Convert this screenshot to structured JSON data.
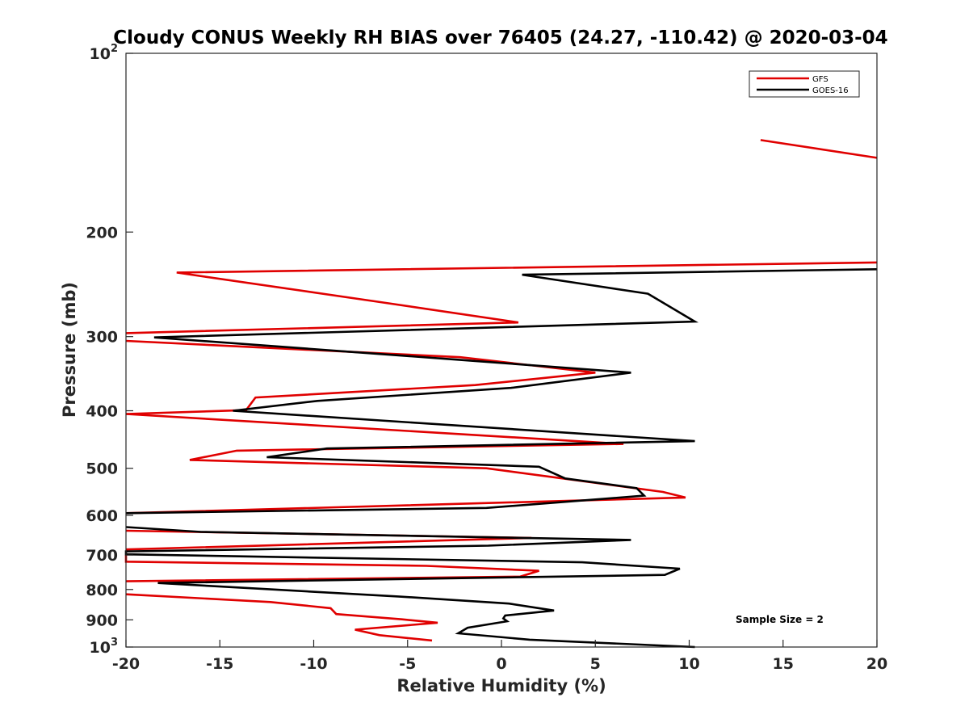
{
  "chart_data": {
    "type": "line",
    "title": "Cloudy CONUS Weekly RH BIAS over 76405 (24.27, -110.42) @ 2020-03-04",
    "xlabel": "Relative Humidity (%)",
    "ylabel": "Pressure (mb)",
    "xlim": [
      -20,
      20
    ],
    "ylim": [
      100,
      1000
    ],
    "y_scale": "log",
    "y_reversed": true,
    "grid": false,
    "legend_position": "top-right",
    "x_ticks": [
      {
        "value": -20,
        "label": "-20"
      },
      {
        "value": -15,
        "label": "-15"
      },
      {
        "value": -10,
        "label": "-10"
      },
      {
        "value": -5,
        "label": "-5"
      },
      {
        "value": 0,
        "label": "0"
      },
      {
        "value": 5,
        "label": "5"
      },
      {
        "value": 10,
        "label": "10"
      },
      {
        "value": 15,
        "label": "15"
      },
      {
        "value": 20,
        "label": "20"
      }
    ],
    "y_ticks": [
      {
        "value": 100,
        "base": "10",
        "exp": "2"
      },
      {
        "value": 200,
        "label": "200"
      },
      {
        "value": 300,
        "label": "300"
      },
      {
        "value": 400,
        "label": "400"
      },
      {
        "value": 500,
        "label": "500"
      },
      {
        "value": 600,
        "label": "600"
      },
      {
        "value": 700,
        "label": "700"
      },
      {
        "value": 800,
        "label": "800"
      },
      {
        "value": 900,
        "label": "900"
      },
      {
        "value": 1000,
        "base": "10",
        "exp": "3"
      }
    ],
    "series": [
      {
        "name": "GFS",
        "color": "#e00000",
        "segments": [
          [
            [
              13.8,
              140
            ],
            [
              20,
              150
            ]
          ],
          [
            [
              20,
              225
            ],
            [
              -17.3,
              234
            ],
            [
              -6.6,
              262
            ],
            [
              0.9,
              284
            ],
            [
              -20,
              296
            ]
          ],
          [
            [
              -20,
              305
            ],
            [
              -2.2,
              325
            ],
            [
              5.0,
              345
            ],
            [
              -1.4,
              362
            ],
            [
              -13.1,
              380
            ],
            [
              -13.6,
              399
            ],
            [
              -20,
              405
            ],
            [
              -20,
              405
            ]
          ],
          [
            [
              -20,
              405
            ],
            [
              6.5,
              455
            ],
            [
              -14.1,
              467
            ],
            [
              -16.6,
              484
            ],
            [
              -0.8,
              500
            ],
            [
              4.8,
              528
            ],
            [
              8.6,
              548
            ],
            [
              9.8,
              560
            ],
            [
              -20,
              595
            ]
          ],
          [
            [
              -20,
              637
            ],
            [
              1.6,
              655
            ],
            [
              -20,
              685
            ],
            [
              -20,
              685
            ]
          ],
          [
            [
              -20,
              700
            ],
            [
              -20,
              718
            ],
            [
              -4.0,
              730
            ],
            [
              2.0,
              744
            ],
            [
              1.0,
              761
            ],
            [
              -20,
              775
            ]
          ],
          [
            [
              -20,
              815
            ],
            [
              -12.3,
              840
            ],
            [
              -9.1,
              860
            ],
            [
              -8.8,
              880
            ],
            [
              -5.3,
              898
            ],
            [
              -3.4,
              910
            ],
            [
              -7.8,
              935
            ],
            [
              -6.5,
              955
            ],
            [
              -3.7,
              975
            ]
          ]
        ]
      },
      {
        "name": "GOES-16",
        "color": "#000000",
        "segments": [
          [
            [
              20,
              231
            ],
            [
              1.1,
              236
            ],
            [
              7.8,
              254
            ],
            [
              10.3,
              283
            ],
            [
              -18.5,
              301
            ],
            [
              -2.4,
              328
            ],
            [
              6.9,
              345
            ],
            [
              0.5,
              366
            ],
            [
              -9.8,
              385
            ],
            [
              -14.3,
              400
            ],
            [
              10.3,
              450
            ],
            [
              -9.3,
              463
            ],
            [
              -12.5,
              479
            ],
            [
              2.0,
              497
            ],
            [
              3.4,
              520
            ],
            [
              7.2,
              540
            ],
            [
              7.6,
              556
            ],
            [
              -0.8,
              583
            ],
            [
              -20,
              595
            ]
          ],
          [
            [
              -20,
              628
            ],
            [
              -16.0,
              640
            ],
            [
              6.9,
              660
            ],
            [
              -0.7,
              675
            ],
            [
              -20,
              690
            ],
            [
              -20,
              698
            ],
            [
              4.3,
              720
            ],
            [
              9.5,
              738
            ],
            [
              8.7,
              756
            ],
            [
              -18.3,
              780
            ],
            [
              -14.6,
              792
            ],
            [
              -5.5,
              822
            ],
            [
              0.4,
              845
            ],
            [
              2.8,
              868
            ],
            [
              0.2,
              885
            ],
            [
              0.1,
              895
            ],
            [
              0.3,
              905
            ],
            [
              -1.8,
              928
            ],
            [
              -2.3,
              948
            ],
            [
              1.5,
              972
            ],
            [
              10.3,
              1000
            ]
          ]
        ]
      }
    ],
    "annotation": "Sample Size = 2"
  }
}
